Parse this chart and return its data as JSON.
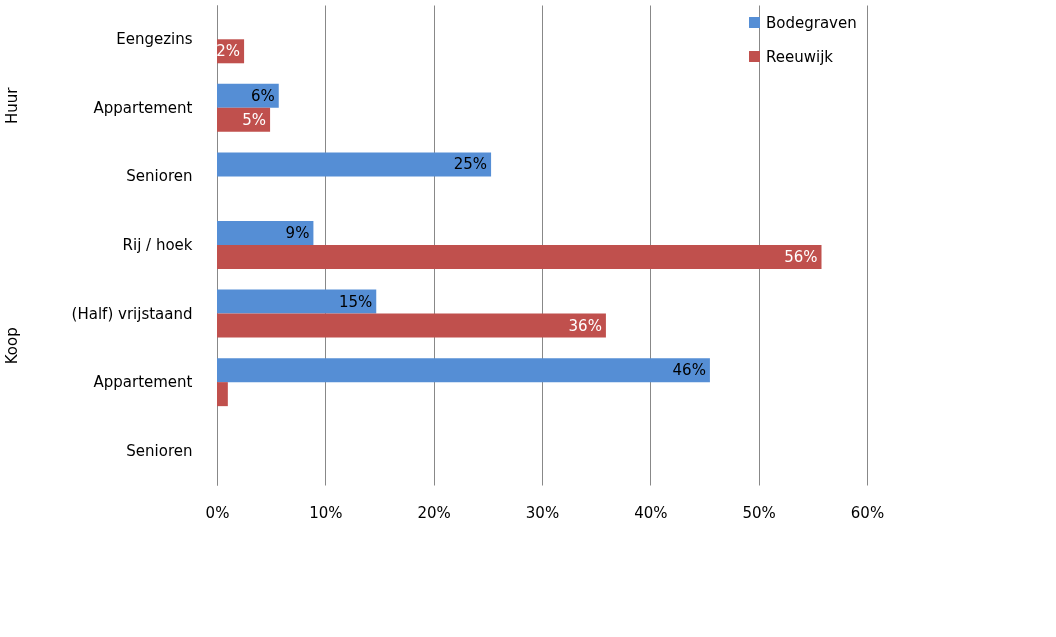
{
  "chart_data": {
    "type": "bar",
    "orientation": "horizontal",
    "categories": [
      "Eengezins",
      "Appartement",
      "Senioren",
      "Rij / hoek",
      "(Half) vrijstaand",
      "Appartement",
      "Senioren"
    ],
    "series": [
      {
        "name": "Bodegraven",
        "color": "#558ed5",
        "values": [
          null,
          5.7,
          25.3,
          8.9,
          14.7,
          45.5,
          null
        ],
        "value_labels": [
          null,
          "6%",
          "25%",
          "9%",
          "15%",
          "46%",
          null
        ]
      },
      {
        "name": "Reeuwijk",
        "color": "#c0504d",
        "values": [
          2.5,
          4.9,
          null,
          55.8,
          35.9,
          1.0,
          null
        ],
        "value_labels": [
          "2%",
          "5%",
          null,
          "56%",
          "36%",
          null,
          null
        ]
      }
    ],
    "xlim": [
      0,
      60
    ],
    "xticks": [
      {
        "value": 0,
        "label": "0%"
      },
      {
        "value": 10,
        "label": "10%"
      },
      {
        "value": 20,
        "label": "20%"
      },
      {
        "value": 30,
        "label": "30%"
      },
      {
        "value": 40,
        "label": "40%"
      },
      {
        "value": 50,
        "label": "50%"
      },
      {
        "value": 60,
        "label": "60%"
      }
    ],
    "annotations": [
      "Huur",
      "Koop"
    ],
    "grid": "x",
    "legend": "top right"
  }
}
